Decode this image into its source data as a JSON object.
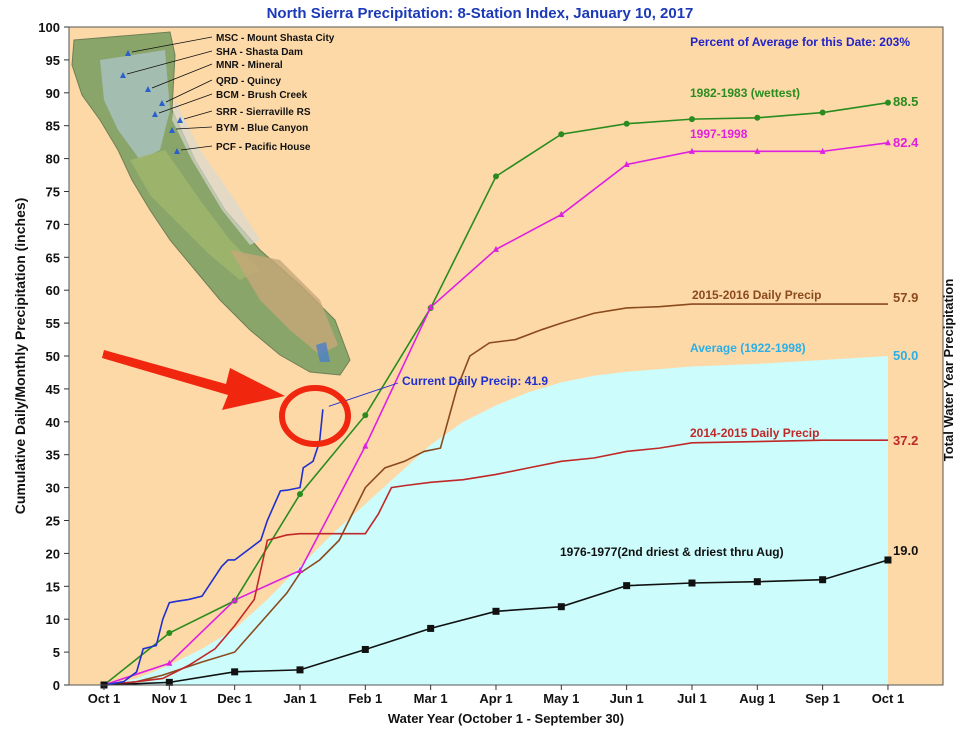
{
  "chart_data": {
    "type": "line",
    "title": "North Sierra Precipitation: 8-Station Index, January 10, 2017",
    "subtitle": "Percent of Average for this Date: 203%",
    "xlabel": "Water Year (October 1 - September 30)",
    "ylabel": "Cumulative Daily/Monthly Precipitation (inches)",
    "ylabel_right": "Total Water Year Precipitation",
    "x_ticks": [
      "Oct 1",
      "Nov 1",
      "Dec 1",
      "Jan 1",
      "Feb 1",
      "Mar 1",
      "Apr 1",
      "May 1",
      "Jun 1",
      "Jul 1",
      "Aug 1",
      "Sep 1",
      "Oct 1"
    ],
    "ylim": [
      0,
      100
    ],
    "y_ticks": [
      0,
      5,
      10,
      15,
      20,
      25,
      30,
      35,
      40,
      45,
      50,
      55,
      60,
      65,
      70,
      75,
      80,
      85,
      90,
      95,
      100
    ],
    "grid": false,
    "colors": {
      "background": "#fdd9a8",
      "average_fill": "#ccfcfc",
      "frame": "#555555",
      "title": "#1c3ab8"
    },
    "stations": [
      "MSC - Mount Shasta City",
      "SHA - Shasta Dam",
      "MNR - Mineral",
      "QRD - Quincy",
      "BCM - Brush Creek",
      "SRR - Sierraville RS",
      "BYM - Blue Canyon",
      "PCF - Pacific House"
    ],
    "series": [
      {
        "name": "1982-1983 (wettest)",
        "color": "#2a8c1f",
        "marker": "circle",
        "total": "88.5",
        "x": [
          0,
          1,
          2,
          3,
          4,
          5,
          6,
          7,
          8,
          9,
          10,
          11,
          12
        ],
        "values": [
          0,
          7.9,
          12.8,
          29.0,
          41.0,
          57.3,
          77.3,
          83.7,
          85.3,
          86.0,
          86.2,
          87.0,
          88.5
        ]
      },
      {
        "name": "1997-1998",
        "color": "#e020e0",
        "marker": "triangle",
        "total": "82.4",
        "x": [
          0,
          1,
          2,
          3,
          4,
          5,
          6,
          7,
          8,
          9,
          10,
          11,
          12
        ],
        "values": [
          0,
          3.3,
          12.9,
          17.4,
          36.3,
          57.4,
          66.2,
          71.5,
          79.1,
          81.1,
          81.1,
          81.1,
          82.4
        ]
      },
      {
        "name": "2015-2016 Daily Precip",
        "color": "#8b4a1c",
        "total": "57.9",
        "x": [
          0,
          0.5,
          0.9,
          1.5,
          2.0,
          2.4,
          2.8,
          3.0,
          3.3,
          3.6,
          4.0,
          4.3,
          4.6,
          4.9,
          5.15,
          5.4,
          5.6,
          5.9,
          6.3,
          6.7,
          7.0,
          7.5,
          8.0,
          8.5,
          9.0,
          10.0,
          11.0,
          12.0
        ],
        "values": [
          0,
          0.5,
          1.5,
          3.5,
          5.0,
          9.5,
          14.0,
          17.0,
          19.0,
          22.0,
          30.0,
          33.0,
          34.0,
          35.5,
          36.0,
          45.0,
          50.0,
          52.0,
          52.5,
          54.0,
          55.0,
          56.5,
          57.3,
          57.5,
          57.9,
          57.9,
          57.9,
          57.9
        ]
      },
      {
        "name": "2014-2015 Daily Precip",
        "color": "#c02828",
        "total": "37.2",
        "x": [
          0,
          0.5,
          0.9,
          1.3,
          1.7,
          2.0,
          2.3,
          2.5,
          2.8,
          3.0,
          3.5,
          4.0,
          4.2,
          4.4,
          4.6,
          5.0,
          5.5,
          6.0,
          6.5,
          7.0,
          7.5,
          8.0,
          8.5,
          9.0,
          10.0,
          11.0,
          12.0
        ],
        "values": [
          0,
          0.5,
          1.0,
          3.0,
          5.5,
          9.0,
          13.0,
          22.0,
          22.8,
          23.0,
          23.0,
          23.0,
          26.0,
          30.0,
          30.3,
          30.8,
          31.2,
          32.0,
          33.0,
          34.0,
          34.5,
          35.5,
          36.0,
          36.8,
          37.0,
          37.2,
          37.2
        ]
      },
      {
        "name": "Average (1922-1998)",
        "color": "#ccfcfc",
        "label_color": "#2ab0e8",
        "type": "area",
        "total": "50.0",
        "x": [
          0,
          0.5,
          1.0,
          1.5,
          2.0,
          2.5,
          3.0,
          3.5,
          4.0,
          4.5,
          5.0,
          5.5,
          6.0,
          6.5,
          7.0,
          7.5,
          8.0,
          8.5,
          9.0,
          10.0,
          11.0,
          12.0
        ],
        "values": [
          0,
          1.0,
          3.0,
          5.5,
          8.5,
          13.0,
          18.0,
          23.0,
          27.5,
          32.0,
          36.5,
          40.0,
          42.5,
          44.5,
          46.0,
          47.0,
          47.6,
          48.0,
          48.4,
          48.8,
          49.4,
          50.0
        ]
      },
      {
        "name": "1976-1977(2nd driest & driest thru Aug)",
        "color": "#111111",
        "marker": "square",
        "total": "19.0",
        "x": [
          0,
          1,
          2,
          3,
          4,
          5,
          6,
          7,
          8,
          9,
          10,
          11,
          12
        ],
        "values": [
          0,
          0.4,
          2.0,
          2.3,
          5.4,
          8.6,
          11.2,
          11.9,
          15.1,
          15.5,
          15.7,
          16.0,
          19.0
        ]
      },
      {
        "name": "Current Daily Precip: 41.9",
        "color": "#1f2fd0",
        "x": [
          0,
          0.3,
          0.5,
          0.6,
          0.8,
          0.9,
          1.0,
          1.1,
          1.3,
          1.5,
          1.6,
          1.8,
          1.9,
          2.0,
          2.2,
          2.4,
          2.5,
          2.7,
          2.8,
          3.0,
          3.05,
          3.2,
          3.3,
          3.35
        ],
        "values": [
          0,
          0.5,
          2.0,
          5.5,
          6.0,
          10.0,
          12.5,
          12.7,
          13.0,
          13.5,
          15.0,
          18.0,
          19.0,
          19.0,
          20.5,
          22.0,
          25.0,
          29.5,
          29.6,
          30.0,
          33.0,
          34.0,
          37.0,
          41.9
        ]
      }
    ]
  }
}
